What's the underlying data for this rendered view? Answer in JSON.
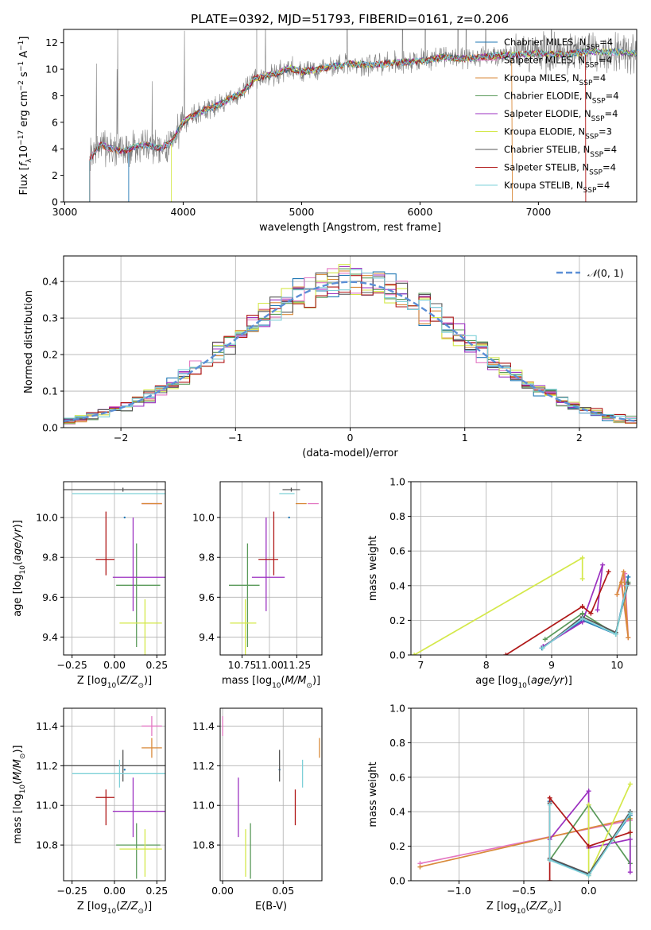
{
  "figure": {
    "title": "PLATE=0392, MJD=51793, FIBERID=0161, z=0.206"
  },
  "colors": {
    "Chabrier MILES": "#1f77b4",
    "Salpeter MILES": "#e377c2",
    "Kroupa MILES": "#d98a3a",
    "Chabrier ELODIE": "#5a9a5a",
    "Salpeter ELODIE": "#9b30c0",
    "Kroupa ELODIE": "#d4e84a",
    "Chabrier STELIB": "#555555",
    "Salpeter STELIB": "#b01818",
    "Kroupa STELIB": "#7ed0d8",
    "spectrum": "#808080",
    "normal_curve": "#5b8fd6"
  },
  "chart_data": [
    {
      "id": "spectrum",
      "type": "line",
      "xlabel": "wavelength [Angstrom, rest frame]",
      "ylabel": "Flux [f_λ 10^-17 erg cm^-2 s^-1 A^-1 ]",
      "xlim": [
        2990,
        7830
      ],
      "ylim": [
        0,
        13
      ],
      "xticks": [
        "3000",
        "4000",
        "5000",
        "6000",
        "7000"
      ],
      "yticks": [
        "0",
        "2",
        "4",
        "6",
        "8",
        "10",
        "12"
      ],
      "grid": false,
      "legend_position": "top-right",
      "legend": [
        "Chabrier MILES, N_SSP=4",
        "Salpeter MILES, N_SSP=4",
        "Kroupa MILES, N_SSP=4",
        "Chabrier ELODIE, N_SSP=4",
        "Salpeter ELODIE, N_SSP=4",
        "Kroupa ELODIE, N_SSP=3",
        "Chabrier STELIB, N_SSP=4",
        "Salpeter STELIB, N_SSP=4",
        "Kroupa STELIB, N_SSP=4"
      ],
      "continuum": {
        "wavelength": [
          3210,
          3300,
          3400,
          3500,
          3600,
          3700,
          3800,
          3900,
          4000,
          4100,
          4200,
          4300,
          4400,
          4500,
          4600,
          4700,
          4800,
          4900,
          5000,
          5200,
          5400,
          5600,
          5800,
          6000,
          6200,
          6400,
          6600,
          6800,
          7000,
          7200,
          7400,
          7600,
          7800
        ],
        "flux": [
          3.2,
          4.3,
          4.0,
          3.8,
          4.2,
          4.3,
          4.0,
          4.5,
          6.0,
          6.6,
          7.0,
          7.3,
          7.8,
          8.2,
          9.3,
          9.5,
          9.7,
          10.1,
          9.8,
          10.1,
          10.4,
          10.3,
          10.5,
          10.6,
          10.9,
          10.8,
          11.0,
          11.1,
          11.2,
          11.1,
          11.3,
          11.3,
          11.2
        ]
      }
    },
    {
      "id": "residuals",
      "type": "step",
      "xlabel": "(data-model)/error",
      "ylabel": "Normed distribution",
      "xlim": [
        -2.5,
        2.5
      ],
      "ylim": [
        0,
        0.47
      ],
      "xticks": [
        "−2",
        "−1",
        "0",
        "1",
        "2"
      ],
      "yticks": [
        "0.0",
        "0.1",
        "0.2",
        "0.3",
        "0.4"
      ],
      "grid": true,
      "legend_position": "top-right",
      "legend": [
        "𝒩(0, 1)"
      ],
      "bin_width": 0.1
    },
    {
      "id": "age-vs-Z",
      "type": "errorbar",
      "xlabel": "Z [log10(Z/Z⊙)]",
      "ylabel": "age  [log10(age/yr)]",
      "xlim": [
        -0.3,
        0.3
      ],
      "ylim": [
        9.31,
        10.18
      ],
      "xticks": [
        "−0.25",
        "0.00",
        "0.25"
      ],
      "yticks": [
        "9.4",
        "9.6",
        "9.8",
        "10.0"
      ],
      "grid": true
    },
    {
      "id": "age-vs-mass",
      "type": "errorbar",
      "xlabel": "mass [log10(M/M⊙)]",
      "ylabel": "",
      "xlim": [
        10.55,
        11.48
      ],
      "ylim": [
        9.31,
        10.18
      ],
      "xticks": [
        "10.75",
        "11.00",
        "11.25"
      ],
      "yticks": [
        "9.4",
        "9.6",
        "9.8",
        "10.0"
      ],
      "grid": true
    },
    {
      "id": "massweight-vs-age",
      "type": "line",
      "xlabel": "age  [log10(age/yr)]",
      "ylabel": "mass weight",
      "xlim": [
        6.85,
        10.3
      ],
      "ylim": [
        0,
        1.0
      ],
      "xticks": [
        "7",
        "8",
        "9",
        "10"
      ],
      "yticks": [
        "0.0",
        "0.2",
        "0.4",
        "0.6",
        "0.8",
        "1.0"
      ],
      "grid": true
    },
    {
      "id": "mass-vs-Z",
      "type": "errorbar",
      "xlabel": "Z [log10(Z/Z⊙)]",
      "ylabel": "mass [log10(M/M⊙)]",
      "xlim": [
        -0.3,
        0.3
      ],
      "ylim": [
        10.62,
        11.49
      ],
      "xticks": [
        "−0.25",
        "0.00",
        "0.25"
      ],
      "yticks": [
        "10.8",
        "11.0",
        "11.2",
        "11.4"
      ],
      "grid": true
    },
    {
      "id": "mass-vs-EBV",
      "type": "errorbar",
      "xlabel": "E(B-V)",
      "ylabel": "",
      "xlim": [
        -0.002,
        0.082
      ],
      "ylim": [
        10.62,
        11.49
      ],
      "xticks": [
        "0.00",
        "0.05"
      ],
      "yticks": [
        "10.8",
        "11.0",
        "11.2",
        "11.4"
      ],
      "grid": true
    },
    {
      "id": "massweight-vs-Z",
      "type": "line",
      "xlabel": "Z [log10(Z/Z⊙)]",
      "ylabel": "mass weight",
      "xlim": [
        -1.37,
        0.37
      ],
      "ylim": [
        0,
        1.0
      ],
      "xticks": [
        "−1.0",
        "−0.5",
        "0.0"
      ],
      "yticks": [
        "0.0",
        "0.2",
        "0.4",
        "0.6",
        "0.8",
        "1.0"
      ],
      "grid": true
    }
  ],
  "models": [
    {
      "name": "Chabrier MILES",
      "age": [
        10.0,
        0.0,
        0.0
      ],
      "Z": [
        0.06,
        0.0,
        0.0
      ],
      "mass": [
        11.18,
        0.0,
        0.0
      ],
      "ebv": 0.047
    },
    {
      "name": "Salpeter MILES",
      "age": [
        10.07,
        0.0,
        0.0
      ],
      "Z": [
        0.22,
        0.06,
        0.06
      ],
      "mass": [
        11.4,
        0.05,
        0.05
      ],
      "ebv": 0.0
    },
    {
      "name": "Kroupa MILES",
      "age": [
        10.07,
        0.0,
        0.0
      ],
      "Z": [
        0.22,
        0.06,
        0.06
      ],
      "mass": [
        11.29,
        0.05,
        0.05
      ],
      "ebv": 0.08
    },
    {
      "name": "Chabrier ELODIE",
      "age": [
        9.66,
        0.31,
        0.21
      ],
      "Z": [
        0.13,
        0.12,
        0.14
      ],
      "mass": [
        10.8,
        0.17,
        0.11
      ],
      "ebv": 0.023
    },
    {
      "name": "Salpeter ELODIE",
      "age": [
        9.7,
        0.17,
        0.3
      ],
      "Z": [
        0.11,
        0.12,
        0.19
      ],
      "mass": [
        10.97,
        0.13,
        0.17
      ],
      "ebv": 0.013
    },
    {
      "name": "Kroupa ELODIE",
      "age": [
        9.47,
        0.26,
        0.12
      ],
      "Z": [
        0.18,
        0.15,
        0.1
      ],
      "mass": [
        10.78,
        0.14,
        0.1
      ],
      "ebv": 0.019
    },
    {
      "name": "Chabrier STELIB",
      "age": [
        10.14,
        0.01,
        0.01
      ],
      "Z": [
        0.05,
        0.37,
        0.28
      ],
      "mass": [
        11.2,
        0.08,
        0.08
      ],
      "ebv": 0.047
    },
    {
      "name": "Salpeter STELIB",
      "age": [
        9.79,
        0.08,
        0.24
      ],
      "Z": [
        -0.05,
        0.06,
        0.05
      ],
      "mass": [
        11.04,
        0.14,
        0.04
      ],
      "ebv": 0.06
    },
    {
      "name": "Kroupa STELIB",
      "age": [
        10.12,
        0.0,
        0.0
      ],
      "Z": [
        0.03,
        0.28,
        0.3
      ],
      "mass": [
        11.16,
        0.07,
        0.07
      ],
      "ebv": 0.066
    }
  ]
}
